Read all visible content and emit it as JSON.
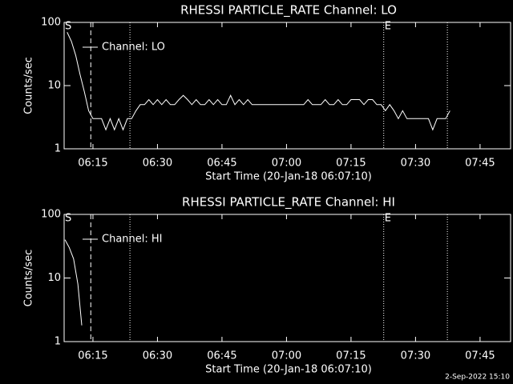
{
  "chart_data": [
    {
      "type": "line",
      "title": "RHESSI PARTICLE_RATE Channel: LO",
      "xlabel": "Start Time (20-Jan-18 06:07:10)",
      "ylabel": "Counts/sec",
      "xlim": [
        8.3,
        112.1
      ],
      "ylim": [
        1,
        100
      ],
      "log_y": true,
      "legend": "upper left",
      "xticks": [
        {
          "value": 15,
          "label": "06:15"
        },
        {
          "value": 30,
          "label": "06:30"
        },
        {
          "value": 45,
          "label": "06:45"
        },
        {
          "value": 60,
          "label": "07:00"
        },
        {
          "value": 75,
          "label": "07:15"
        },
        {
          "value": 90,
          "label": "07:30"
        },
        {
          "value": 105,
          "label": "07:45"
        }
      ],
      "yticks": [
        1,
        10,
        100
      ],
      "markers": [
        {
          "x": 14.5,
          "style": "dashed"
        },
        {
          "x": 23.6,
          "style": "dotted"
        },
        {
          "x": 82.6,
          "style": "dotted"
        },
        {
          "x": 97.4,
          "style": "dotted"
        }
      ],
      "annotations": [
        {
          "text": "S",
          "x": 8.3
        },
        {
          "text": "E",
          "x": 82.6
        }
      ],
      "series": [
        {
          "name": "Channel: LO",
          "color": "#ffffff",
          "x": [
            9,
            10,
            11,
            12,
            13,
            14,
            15,
            16,
            17,
            18,
            19,
            20,
            21,
            22,
            23,
            24,
            25,
            26,
            27,
            28,
            29,
            30,
            31,
            32,
            33,
            34,
            35,
            36,
            37,
            38,
            39,
            40,
            41,
            42,
            43,
            44,
            45,
            46,
            47,
            48,
            49,
            50,
            51,
            52,
            53,
            54,
            55,
            56,
            57,
            58,
            59,
            60,
            61,
            62,
            63,
            64,
            65,
            66,
            67,
            68,
            69,
            70,
            71,
            72,
            73,
            74,
            75,
            76,
            77,
            78,
            79,
            80,
            81,
            82,
            83,
            84,
            85,
            86,
            87,
            88,
            89,
            90,
            91,
            92,
            93,
            94,
            95,
            96,
            97,
            98
          ],
          "values": [
            70,
            50,
            30,
            15,
            8,
            4,
            3,
            3,
            3,
            2,
            3,
            2,
            3,
            2,
            3,
            3,
            4,
            5,
            5,
            6,
            5,
            6,
            5,
            6,
            5,
            5,
            6,
            7,
            6,
            5,
            6,
            5,
            5,
            6,
            5,
            6,
            5,
            5,
            7,
            5,
            6,
            5,
            6,
            5,
            5,
            5,
            5,
            5,
            5,
            5,
            5,
            5,
            5,
            5,
            5,
            5,
            6,
            5,
            5,
            5,
            6,
            5,
            5,
            6,
            5,
            5,
            6,
            6,
            6,
            5,
            6,
            6,
            5,
            5,
            4,
            5,
            4,
            3,
            4,
            3,
            3,
            3,
            3,
            3,
            3,
            2,
            3,
            3,
            3,
            4
          ]
        }
      ]
    },
    {
      "type": "line",
      "title": "RHESSI PARTICLE_RATE Channel: HI",
      "xlabel": "Start Time (20-Jan-18 06:07:10)",
      "ylabel": "Counts/sec",
      "xlim": [
        8.3,
        112.1
      ],
      "ylim": [
        1,
        100
      ],
      "log_y": true,
      "legend": "upper left",
      "xticks": [
        {
          "value": 15,
          "label": "06:15"
        },
        {
          "value": 30,
          "label": "06:30"
        },
        {
          "value": 45,
          "label": "06:45"
        },
        {
          "value": 60,
          "label": "07:00"
        },
        {
          "value": 75,
          "label": "07:15"
        },
        {
          "value": 90,
          "label": "07:30"
        },
        {
          "value": 105,
          "label": "07:45"
        }
      ],
      "yticks": [
        1,
        10,
        100
      ],
      "markers": [
        {
          "x": 14.5,
          "style": "dashed"
        },
        {
          "x": 23.6,
          "style": "dotted"
        },
        {
          "x": 82.6,
          "style": "dotted"
        },
        {
          "x": 97.4,
          "style": "dotted"
        }
      ],
      "annotations": [
        {
          "text": "S",
          "x": 8.3
        },
        {
          "text": "E",
          "x": 82.6
        }
      ],
      "series": [
        {
          "name": "Channel: HI",
          "color": "#ffffff",
          "x": [
            8.5,
            9.5,
            10.5,
            11.5,
            12.4
          ],
          "values": [
            40,
            30,
            20,
            8,
            1.8
          ]
        }
      ]
    }
  ],
  "footer": "2-Sep-2022 15:10"
}
